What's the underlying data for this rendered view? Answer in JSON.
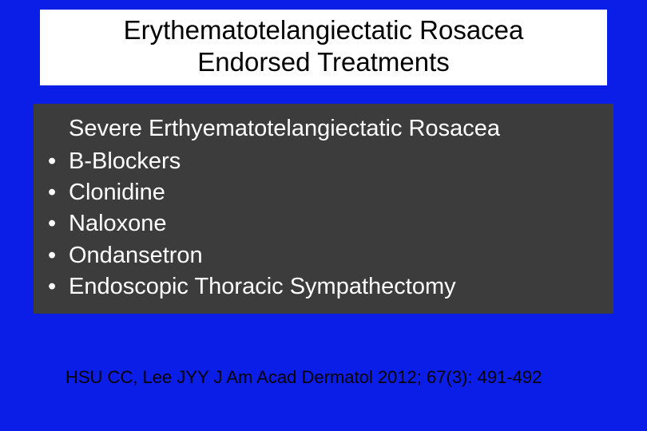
{
  "slide": {
    "background_color": "#0b1ee8",
    "title": {
      "line1": "Erythematotelangiectatic Rosacea",
      "line2": "Endorsed Treatments",
      "background_color": "#ffffff",
      "text_color": "#000000",
      "fontsize": 33
    },
    "content": {
      "background_color": "#3c3c3c",
      "text_color": "#ffffff",
      "fontsize": 29,
      "subheading": "Severe Erthyematotelangiectatic Rosacea",
      "bullets": [
        "B-Blockers",
        "Clonidine",
        "Naloxone",
        "Ondansetron",
        "Endoscopic Thoracic Sympathectomy"
      ]
    },
    "citation": {
      "text": "HSU  CC, Lee JYY J Am Acad Dermatol 2012; 67(3): 491-492",
      "text_color": "#000000",
      "fontsize": 22
    }
  }
}
